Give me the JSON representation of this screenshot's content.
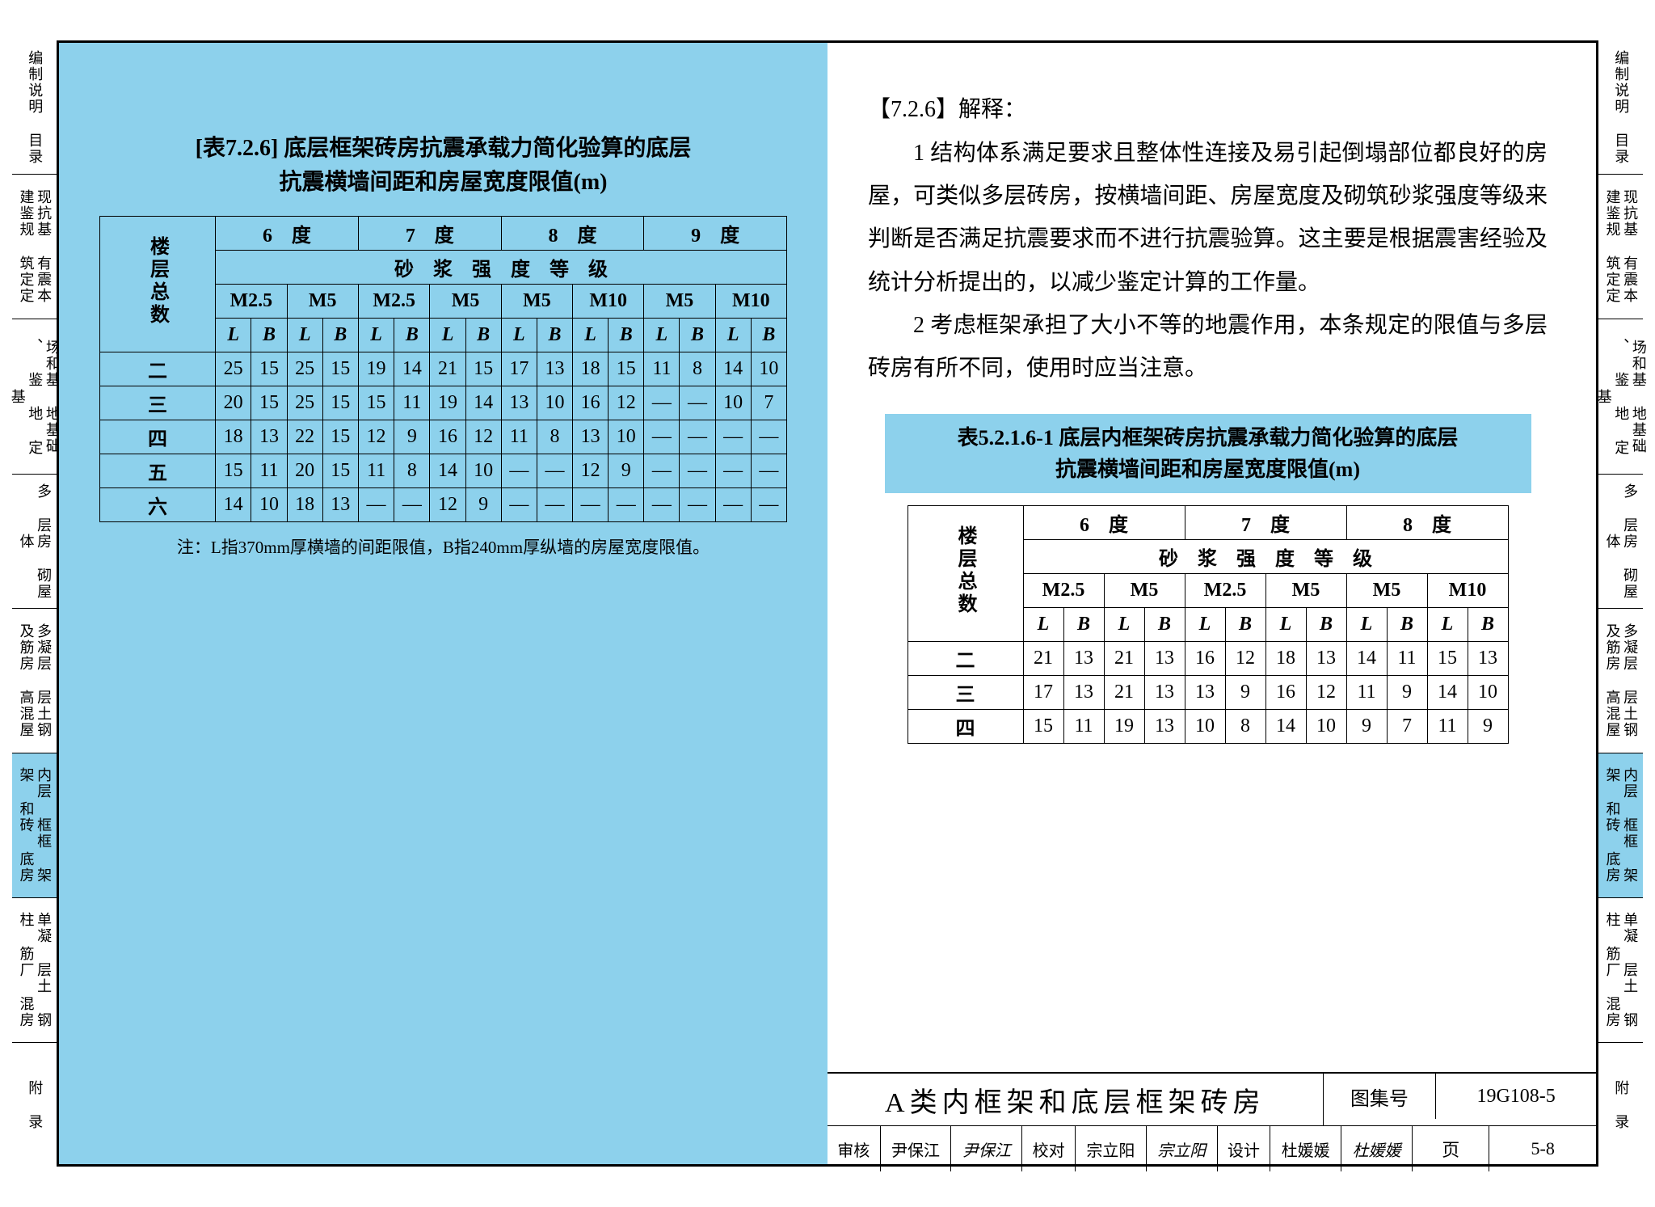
{
  "sideTabs": [
    {
      "label": "编制说明 目录",
      "hl": false,
      "flex": 1.2
    },
    {
      "label": "现抗基 有震本 建鉴规 筑定定",
      "hl": false,
      "flex": 1.3
    },
    {
      "label": "场和基 地基础 、 鉴 地 定 基",
      "hl": false,
      "flex": 1.4
    },
    {
      "label": "多 层房 砌屋 体",
      "hl": false,
      "flex": 1.2
    },
    {
      "label": "多凝层 层土钢 及筋房 高混屋",
      "hl": false,
      "flex": 1.3
    },
    {
      "label": "内层 框框 架架 和砖 底房",
      "hl": true,
      "flex": 1.3
    },
    {
      "label": "单凝 层土 钢柱 筋厂 混房",
      "hl": false,
      "flex": 1.3
    },
    {
      "label": "附 录",
      "hl": false,
      "flex": 1.1
    }
  ],
  "table1": {
    "title1": "[表7.2.6]  底层框架砖房抗震承载力简化验算的底层",
    "title2": "抗震横墙间距和房屋宽度限值(m)",
    "rowHeader": "楼层总数",
    "deg": [
      "6　度",
      "7　度",
      "8　度",
      "9　度"
    ],
    "mortarHeader": "砂　浆　强　度　等　级",
    "mortar": [
      "M2.5",
      "M5",
      "M2.5",
      "M5",
      "M5",
      "M10",
      "M5",
      "M10"
    ],
    "lb": [
      "L",
      "B",
      "L",
      "B",
      "L",
      "B",
      "L",
      "B",
      "L",
      "B",
      "L",
      "B",
      "L",
      "B",
      "L",
      "B"
    ],
    "rows": [
      {
        "h": "二",
        "v": [
          "25",
          "15",
          "25",
          "15",
          "19",
          "14",
          "21",
          "15",
          "17",
          "13",
          "18",
          "15",
          "11",
          "8",
          "14",
          "10"
        ]
      },
      {
        "h": "三",
        "v": [
          "20",
          "15",
          "25",
          "15",
          "15",
          "11",
          "19",
          "14",
          "13",
          "10",
          "16",
          "12",
          "—",
          "—",
          "10",
          "7"
        ]
      },
      {
        "h": "四",
        "v": [
          "18",
          "13",
          "22",
          "15",
          "12",
          "9",
          "16",
          "12",
          "11",
          "8",
          "13",
          "10",
          "—",
          "—",
          "—",
          "—"
        ]
      },
      {
        "h": "五",
        "v": [
          "15",
          "11",
          "20",
          "15",
          "11",
          "8",
          "14",
          "10",
          "—",
          "—",
          "12",
          "9",
          "—",
          "—",
          "—",
          "—"
        ]
      },
      {
        "h": "六",
        "v": [
          "14",
          "10",
          "18",
          "13",
          "—",
          "—",
          "12",
          "9",
          "—",
          "—",
          "—",
          "—",
          "—",
          "—",
          "—",
          "—"
        ]
      }
    ],
    "note": "注：L指370mm厚横墙的间距限值，B指240mm厚纵墙的房屋宽度限值。"
  },
  "explanation": {
    "head": "【7.2.6】解释：",
    "p1": "1  结构体系满足要求且整体性连接及易引起倒塌部位都良好的房屋，可类似多层砖房，按横墙间距、房屋宽度及砌筑砂浆强度等级来判断是否满足抗震要求而不进行抗震验算。这主要是根据震害经验及统计分析提出的，以减少鉴定计算的工作量。",
    "p2": "2  考虑框架承担了大小不等的地震作用，本条规定的限值与多层砖房有所不同，使用时应当注意。"
  },
  "table2": {
    "title1": "表5.2.1.6-1  底层内框架砖房抗震承载力简化验算的底层",
    "title2": "抗震横墙间距和房屋宽度限值(m)",
    "rowHeader": "楼层总数",
    "deg": [
      "6　度",
      "7　度",
      "8　度"
    ],
    "mortarHeader": "砂　浆　强　度　等　级",
    "mortar": [
      "M2.5",
      "M5",
      "M2.5",
      "M5",
      "M5",
      "M10"
    ],
    "lb": [
      "L",
      "B",
      "L",
      "B",
      "L",
      "B",
      "L",
      "B",
      "L",
      "B",
      "L",
      "B"
    ],
    "rows": [
      {
        "h": "二",
        "v": [
          "21",
          "13",
          "21",
          "13",
          "16",
          "12",
          "18",
          "13",
          "14",
          "11",
          "15",
          "13"
        ]
      },
      {
        "h": "三",
        "v": [
          "17",
          "13",
          "21",
          "13",
          "13",
          "9",
          "16",
          "12",
          "11",
          "9",
          "14",
          "10"
        ]
      },
      {
        "h": "四",
        "v": [
          "15",
          "11",
          "19",
          "13",
          "10",
          "8",
          "14",
          "10",
          "9",
          "7",
          "11",
          "9"
        ]
      }
    ]
  },
  "footer": {
    "title": "A类内框架和底层框架砖房",
    "atlasLabel": "图集号",
    "atlasNo": "19G108-5",
    "row2": [
      {
        "l": "审核",
        "v": "尹保江",
        "s": "尹保江"
      },
      {
        "l": "校对",
        "v": "宗立阳",
        "s": "宗立阳"
      },
      {
        "l": "设计",
        "v": "杜媛媛",
        "s": "杜媛媛"
      }
    ],
    "pageLabel": "页",
    "pageNo": "5-8"
  },
  "colors": {
    "highlight": "#8dd1ec",
    "border": "#000000",
    "bg": "#ffffff"
  }
}
